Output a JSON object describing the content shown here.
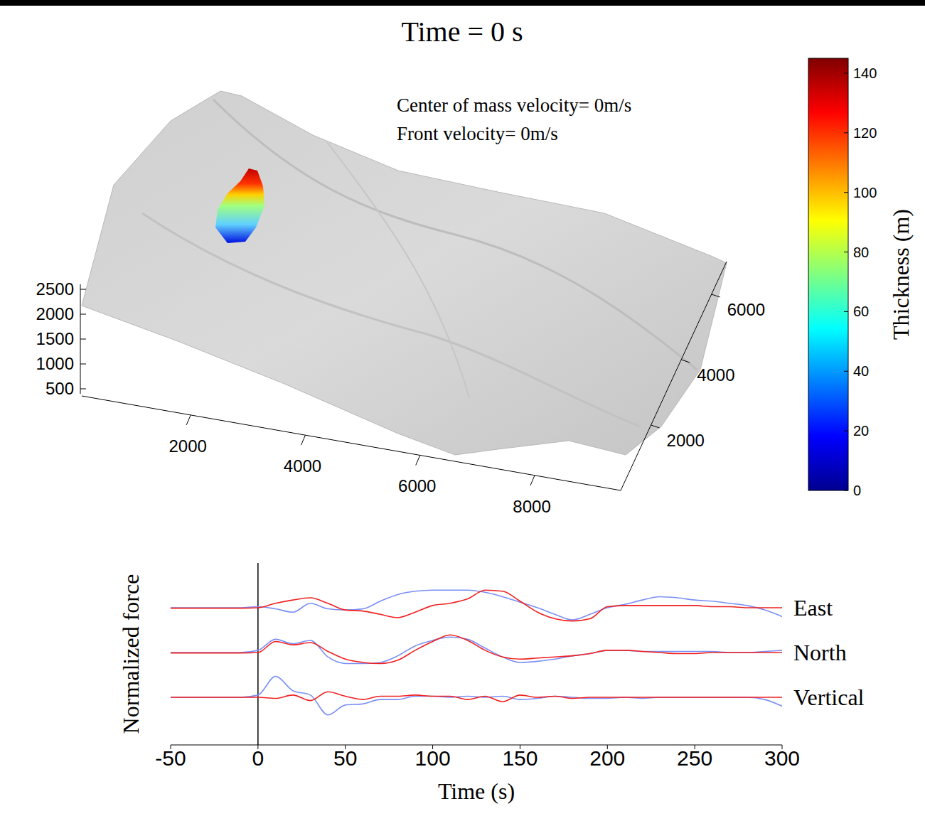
{
  "title": "Time = 0 s",
  "annotations": [
    "Center of mass velocity= 0m/s",
    "Front velocity= 0m/s"
  ],
  "surface": {
    "type": "surface",
    "xlim": [
      100,
      9500
    ],
    "xticks": [
      2000,
      4000,
      6000,
      8000
    ],
    "ylim": [
      0,
      7000
    ],
    "yticks": [
      2000,
      4000,
      6000
    ],
    "zlim": [
      400,
      2600
    ],
    "zticks": [
      500,
      1000,
      1500,
      2000,
      2500
    ],
    "colorbar": {
      "label": "Thickness (m)",
      "range": [
        0,
        145
      ],
      "ticks": [
        0,
        20,
        40,
        60,
        80,
        100,
        120,
        140
      ]
    }
  },
  "chart_data": {
    "type": "line",
    "xlabel": "Time (s)",
    "ylabel": "Normalized force",
    "x": [
      -50,
      -40,
      -30,
      -20,
      -10,
      0,
      10,
      20,
      30,
      40,
      50,
      60,
      70,
      80,
      90,
      100,
      110,
      120,
      130,
      140,
      150,
      160,
      170,
      180,
      190,
      200,
      210,
      220,
      230,
      240,
      250,
      260,
      270,
      280,
      290,
      300
    ],
    "xlim": [
      -50,
      300
    ],
    "xticks": [
      -50,
      0,
      50,
      100,
      150,
      200,
      250,
      300
    ],
    "current_time": 0,
    "tick_labels": "x",
    "panels": [
      {
        "name": "East",
        "ylim": [
          -1,
          1
        ],
        "series": [
          {
            "color": "#7b8ff5",
            "values": [
              0,
              0,
              0,
              0,
              0,
              0.05,
              -0.05,
              -0.2,
              0.2,
              -0.05,
              -0.1,
              -0.05,
              0.3,
              0.6,
              0.75,
              0.8,
              0.8,
              0.8,
              0.7,
              0.5,
              0.25,
              0,
              -0.3,
              -0.55,
              -0.3,
              0,
              0.15,
              0.35,
              0.5,
              0.45,
              0.35,
              0.3,
              0.2,
              0.1,
              -0.1,
              -0.4
            ]
          },
          {
            "color": "#f02020",
            "values": [
              -0.02,
              -0.02,
              -0.02,
              -0.02,
              -0.02,
              0,
              0.2,
              0.35,
              0.45,
              0.2,
              -0.1,
              -0.15,
              -0.3,
              -0.45,
              -0.2,
              0.1,
              0.2,
              0.4,
              0.8,
              0.75,
              0.3,
              -0.2,
              -0.5,
              -0.6,
              -0.5,
              0.05,
              0.1,
              0.1,
              0.1,
              0.1,
              0.1,
              0.05,
              0.05,
              0,
              0,
              0
            ]
          }
        ]
      },
      {
        "name": "North",
        "ylim": [
          -1,
          1
        ],
        "series": [
          {
            "color": "#7b8ff5",
            "values": [
              0,
              0,
              0,
              0,
              0,
              0.1,
              0.6,
              0.4,
              0.55,
              -0.2,
              -0.5,
              -0.5,
              -0.45,
              -0.15,
              0.3,
              0.55,
              0.7,
              0.6,
              0.2,
              -0.2,
              -0.45,
              -0.4,
              -0.3,
              -0.15,
              -0.05,
              0.1,
              0.1,
              0.05,
              0.05,
              0.05,
              0.05,
              0.05,
              0,
              0,
              0.05,
              0.1
            ]
          },
          {
            "color": "#f02020",
            "values": [
              -0.02,
              -0.02,
              -0.02,
              -0.02,
              -0.02,
              0,
              0.5,
              0.35,
              0.45,
              0.05,
              -0.3,
              -0.45,
              -0.5,
              -0.35,
              0.1,
              0.5,
              0.8,
              0.55,
              0.1,
              -0.2,
              -0.3,
              -0.25,
              -0.2,
              -0.15,
              -0.05,
              0.1,
              0.1,
              0.05,
              0,
              -0.05,
              -0.05,
              0,
              0,
              0,
              0,
              0
            ]
          }
        ]
      },
      {
        "name": "Vertical",
        "ylim": [
          -1,
          1
        ],
        "series": [
          {
            "color": "#7b8ff5",
            "values": [
              0,
              0,
              0,
              0,
              0,
              0.1,
              0.95,
              0.3,
              0.1,
              -0.8,
              -0.35,
              -0.3,
              -0.1,
              -0.1,
              0.05,
              0.05,
              0,
              0.05,
              0,
              0.05,
              -0.1,
              -0.05,
              0.05,
              0,
              -0.05,
              -0.05,
              0,
              -0.05,
              0,
              0,
              0,
              0,
              0,
              0,
              -0.1,
              -0.4
            ]
          },
          {
            "color": "#f02020",
            "values": [
              0,
              0,
              0,
              0,
              0,
              0,
              -0.05,
              0.1,
              -0.15,
              0.25,
              0.05,
              -0.1,
              0.05,
              0.05,
              0.1,
              0.05,
              0.05,
              -0.1,
              0.05,
              -0.2,
              0.1,
              0,
              0.05,
              -0.05,
              0,
              0,
              0,
              0,
              0,
              0,
              0,
              0,
              0,
              0,
              0,
              0
            ]
          }
        ]
      }
    ]
  }
}
